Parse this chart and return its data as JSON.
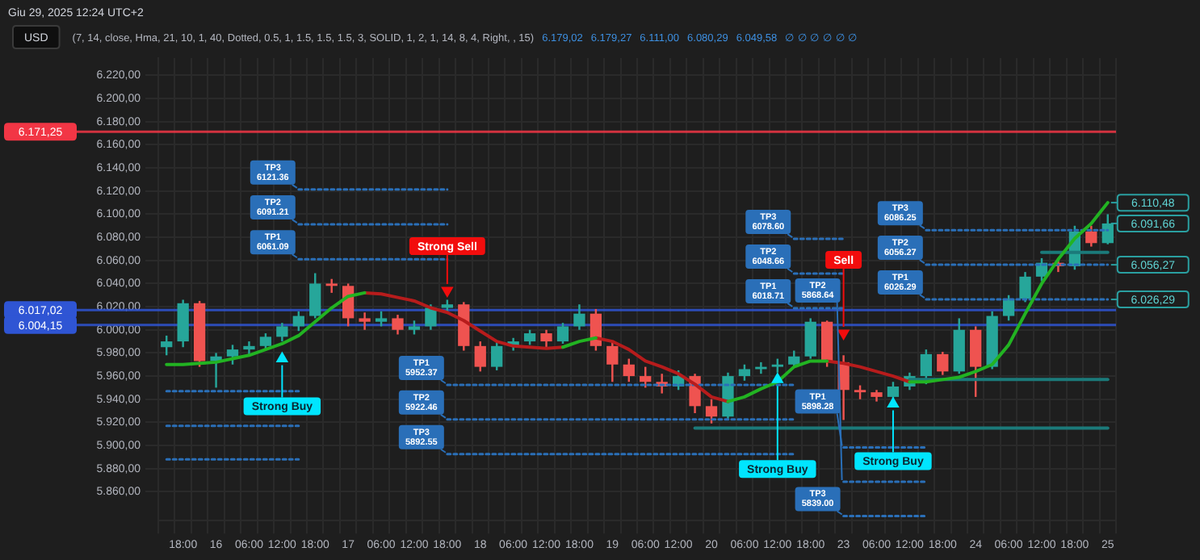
{
  "chart_data": {
    "type": "candlestick",
    "title": "Giu 29, 2025 12:24 UTC+2",
    "subtitle": "(7, 14, close, Hma, 21, 10, 1, 40, Dotted, 0.5, 1, 1.5, 1.5, 1.5, 3, SOLID, 1, 2, 1, 14, 8, 4, Right, , 15)",
    "annotations": [
      "USD",
      "6.179,02",
      "6.179,27",
      "6.111,00",
      "6.080,29",
      "6.049,58",
      "∅ ∅ ∅ ∅ ∅ ∅",
      {
        "text": "6.110,48",
        "x": "25",
        "y": 6110
      },
      {
        "text": "6.091,66",
        "x": "25",
        "y": 6092
      },
      {
        "text": "6.056,27",
        "x": "25",
        "y": 6056.27
      },
      {
        "text": "6.026,29",
        "x": "25",
        "y": 6026.29
      }
    ],
    "categories": [
      null,
      "18:00",
      null,
      "16",
      null,
      "06:00",
      null,
      "12:00",
      null,
      "18:00",
      null,
      "17",
      null,
      "06:00",
      null,
      "12:00",
      null,
      "18:00",
      null,
      "18",
      null,
      "06:00",
      null,
      "12:00",
      null,
      "18:00",
      null,
      "19",
      null,
      "06:00",
      null,
      "12:00",
      null,
      "20",
      null,
      "06:00",
      null,
      "12:00",
      null,
      "18:00",
      null,
      "23",
      null,
      "06:00",
      null,
      "12:00",
      null,
      "18:00",
      null,
      "24",
      null,
      "06:00",
      null,
      "12:00",
      null,
      "18:00",
      null,
      "25"
    ],
    "ohlc": [
      [
        5985,
        5995,
        5978,
        5990
      ],
      [
        5990,
        6026,
        5985,
        6023
      ],
      [
        6023,
        6025,
        5968,
        5973
      ],
      [
        5973,
        5980,
        5950,
        5977
      ],
      [
        5977,
        5987,
        5970,
        5983
      ],
      [
        5983,
        5990,
        5978,
        5986
      ],
      [
        5986,
        5997,
        5982,
        5994
      ],
      [
        5994,
        6006,
        5990,
        6003
      ],
      [
        6003,
        6016,
        5999,
        6012
      ],
      [
        6012,
        6049,
        6010,
        6040
      ],
      [
        6040,
        6044,
        6032,
        6038
      ],
      [
        6038,
        6040,
        6003,
        6010
      ],
      [
        6010,
        6015,
        6000,
        6007
      ],
      [
        6007,
        6016,
        6003,
        6010
      ],
      [
        6010,
        6013,
        5996,
        6000
      ],
      [
        6000,
        6008,
        5996,
        6003
      ],
      [
        6003,
        6022,
        6000,
        6019
      ],
      [
        6019,
        6026,
        6015,
        6022
      ],
      [
        6022,
        6024,
        5982,
        5986
      ],
      [
        5986,
        5990,
        5964,
        5968
      ],
      [
        5968,
        5990,
        5965,
        5986
      ],
      [
        5986,
        5993,
        5982,
        5990
      ],
      [
        5990,
        6000,
        5987,
        5997
      ],
      [
        5997,
        6000,
        5985,
        5990
      ],
      [
        5990,
        6006,
        5988,
        6003
      ],
      [
        6003,
        6022,
        6000,
        6014
      ],
      [
        6014,
        6018,
        5982,
        5986
      ],
      [
        5986,
        5990,
        5955,
        5970
      ],
      [
        5970,
        5975,
        5955,
        5960
      ],
      [
        5960,
        5968,
        5950,
        5955
      ],
      [
        5955,
        5962,
        5945,
        5951
      ],
      [
        5951,
        5965,
        5948,
        5960
      ],
      [
        5960,
        5962,
        5928,
        5934
      ],
      [
        5934,
        5940,
        5919,
        5925
      ],
      [
        5925,
        5963,
        5922,
        5960
      ],
      [
        5960,
        5970,
        5956,
        5966
      ],
      [
        5966,
        5972,
        5962,
        5968
      ],
      [
        5968,
        5975,
        5963,
        5970
      ],
      [
        5970,
        5982,
        5967,
        5977
      ],
      [
        5977,
        6010,
        5975,
        6007
      ],
      [
        6007,
        6008,
        5968,
        5972
      ],
      [
        5972,
        5978,
        5922,
        5948
      ],
      [
        5948,
        5952,
        5940,
        5946
      ],
      [
        5946,
        5948,
        5938,
        5942
      ],
      [
        5942,
        5955,
        5940,
        5951
      ],
      [
        5951,
        5963,
        5948,
        5960
      ],
      [
        5960,
        5983,
        5953,
        5979
      ],
      [
        5979,
        5981,
        5961,
        5964
      ],
      [
        5964,
        6010,
        5962,
        6000
      ],
      [
        6000,
        6003,
        5942,
        5968
      ],
      [
        5968,
        6016,
        5966,
        6012
      ],
      [
        6012,
        6030,
        6008,
        6027
      ],
      [
        6027,
        6050,
        6024,
        6046
      ],
      [
        6046,
        6062,
        6042,
        6058
      ],
      [
        6058,
        6062,
        6050,
        6055
      ],
      [
        6055,
        6090,
        6052,
        6085
      ],
      [
        6085,
        6090,
        6072,
        6075
      ],
      [
        6075,
        6100,
        6074,
        6092
      ]
    ],
    "colors": [
      "#26a69a",
      "#26a69a",
      "#ef5350",
      "#26a69a",
      "#26a69a",
      "#26a69a",
      "#26a69a",
      "#26a69a",
      "#26a69a",
      "#26a69a",
      "#ef5350",
      "#ef5350",
      "#ef5350",
      "#26a69a",
      "#ef5350",
      "#26a69a",
      "#26a69a",
      "#26a69a",
      "#ef5350",
      "#ef5350",
      "#26a69a",
      "#26a69a",
      "#26a69a",
      "#ef5350",
      "#26a69a",
      "#26a69a",
      "#ef5350",
      "#ef5350",
      "#ef5350",
      "#ef5350",
      "#ef5350",
      "#26a69a",
      "#ef5350",
      "#ef5350",
      "#26a69a",
      "#26a69a",
      "#26a69a",
      "#26a69a",
      "#26a69a",
      "#26a69a",
      "#ef5350",
      "#ef5350",
      "#ef5350",
      "#ef5350",
      "#26a69a",
      "#26a69a",
      "#26a69a",
      "#ef5350",
      "#26a69a",
      "#ef5350",
      "#26a69a",
      "#26a69a",
      "#26a69a",
      "#26a69a",
      "#ef5350",
      "#26a69a",
      "#ef5350",
      "#26a69a"
    ],
    "series": [
      {
        "type": "line",
        "color": "#22b322",
        "line_style": "solid",
        "values": [
          5970,
          5970,
          5971,
          5972,
          5975,
          5978,
          5983,
          5988,
          5995,
          6007,
          6019,
          6029,
          6032,
          null,
          null,
          null,
          null,
          null,
          null,
          null,
          null,
          null,
          null,
          null,
          5985,
          5990,
          5993,
          null,
          null,
          null,
          null,
          null,
          null,
          null,
          5938,
          5942,
          5949,
          5955,
          5968,
          5973,
          5973,
          null,
          null,
          null,
          null,
          5955,
          5955,
          5957,
          5959,
          5964,
          5970,
          5987,
          6014,
          6040,
          6061,
          6079,
          6092,
          6110
        ]
      },
      {
        "type": "line",
        "color": "#b71c1c",
        "line_style": "solid",
        "values": [
          null,
          null,
          null,
          null,
          null,
          null,
          null,
          null,
          null,
          null,
          null,
          null,
          6032,
          6031,
          6028,
          6025,
          6019,
          6015,
          6008,
          5999,
          5990,
          5986,
          5985,
          5984,
          5985,
          null,
          5993,
          5990,
          5983,
          5973,
          5968,
          5962,
          5953,
          5942,
          5938,
          null,
          null,
          null,
          null,
          null,
          5973,
          5971,
          5968,
          5964,
          5960,
          5955,
          null,
          null,
          null,
          null,
          null,
          null,
          null,
          null,
          null,
          null,
          null,
          null
        ]
      },
      {
        "type": "line",
        "color": "#1b7a7a",
        "line_style": "solid",
        "values": [
          null,
          null,
          null,
          null,
          null,
          null,
          null,
          null,
          null,
          null,
          null,
          null,
          null,
          null,
          null,
          null,
          null,
          null,
          null,
          null,
          null,
          null,
          null,
          null,
          null,
          null,
          null,
          null,
          null,
          null,
          null,
          null,
          null,
          null,
          null,
          null,
          null,
          null,
          null,
          null,
          null,
          null,
          null,
          null,
          null,
          5957,
          5957,
          5957,
          5957,
          5957,
          5957,
          5957,
          5957,
          5957,
          5957,
          5957,
          5957,
          5957
        ]
      },
      {
        "type": "line",
        "color": "#1b7a7a",
        "line_style": "solid",
        "values": [
          null,
          null,
          null,
          null,
          null,
          null,
          null,
          null,
          null,
          null,
          null,
          null,
          null,
          null,
          null,
          null,
          null,
          null,
          null,
          null,
          null,
          null,
          null,
          null,
          null,
          null,
          null,
          null,
          null,
          null,
          null,
          null,
          5915,
          5915,
          5915,
          5915,
          5915,
          5915,
          5915,
          5915,
          5915,
          5915,
          5915,
          5915,
          5915,
          5915,
          5915,
          5915,
          5915,
          5915,
          5915,
          5915,
          5915,
          5915,
          5915,
          5915,
          5915,
          5915
        ]
      },
      {
        "type": "line",
        "color": "#1b7a7a",
        "line_style": "solid",
        "values": [
          null,
          null,
          null,
          null,
          null,
          null,
          null,
          null,
          null,
          null,
          null,
          null,
          null,
          null,
          null,
          null,
          null,
          null,
          null,
          null,
          null,
          null,
          null,
          null,
          null,
          null,
          null,
          null,
          null,
          null,
          null,
          null,
          null,
          null,
          null,
          null,
          null,
          null,
          null,
          null,
          null,
          null,
          null,
          null,
          null,
          null,
          null,
          null,
          null,
          null,
          null,
          null,
          null,
          6067,
          6067,
          6067,
          6067,
          6067
        ]
      },
      {
        "type": "line",
        "color": "#2a6fb8",
        "line_style": "dotted",
        "values": [
          5947,
          5947,
          5947,
          5947,
          5947,
          5947,
          5947,
          5947,
          5947,
          null,
          null,
          null,
          null,
          null,
          null,
          null,
          null,
          null,
          null,
          null,
          null,
          null,
          null,
          null,
          null,
          null,
          null,
          null,
          null,
          null,
          null,
          null,
          null,
          null,
          null,
          null,
          null,
          null,
          null,
          null,
          null,
          null,
          null,
          null,
          null,
          null,
          null,
          null,
          null,
          null,
          null,
          null,
          null,
          null,
          null,
          null,
          null,
          null
        ]
      },
      {
        "type": "line",
        "color": "#2a6fb8",
        "line_style": "dotted",
        "values": [
          5917,
          5917,
          5917,
          5917,
          5917,
          5917,
          5917,
          5917,
          5917,
          null,
          null,
          null,
          null,
          null,
          null,
          null,
          null,
          null,
          null,
          null,
          null,
          null,
          null,
          null,
          null,
          null,
          null,
          null,
          null,
          null,
          null,
          null,
          null,
          null,
          null,
          null,
          null,
          null,
          null,
          null,
          null,
          null,
          null,
          null,
          null,
          null,
          null,
          null,
          null,
          null,
          null,
          null,
          null,
          null,
          null,
          null,
          null,
          null
        ]
      },
      {
        "type": "line",
        "color": "#2a6fb8",
        "line_style": "dotted",
        "values": [
          5888,
          5888,
          5888,
          5888,
          5888,
          5888,
          5888,
          5888,
          5888,
          null,
          null,
          null,
          null,
          null,
          null,
          null,
          null,
          null,
          null,
          null,
          null,
          null,
          null,
          null,
          null,
          null,
          null,
          null,
          null,
          null,
          null,
          null,
          null,
          null,
          null,
          null,
          null,
          null,
          null,
          null,
          null,
          null,
          null,
          null,
          null,
          null,
          null,
          null,
          null,
          null,
          null,
          null,
          null,
          null,
          null,
          null,
          null,
          null
        ]
      },
      {
        "type": "line",
        "name": "TP3 6121.36",
        "color": "#2a6fb8",
        "line_style": "dotted",
        "values": [
          null,
          null,
          null,
          null,
          null,
          null,
          null,
          null,
          6121.36,
          6121.36,
          6121.36,
          6121.36,
          6121.36,
          6121.36,
          6121.36,
          6121.36,
          6121.36,
          6121.36,
          null,
          null,
          null,
          null,
          null,
          null,
          null,
          null,
          null,
          null,
          null,
          null,
          null,
          null,
          null,
          null,
          null,
          null,
          null,
          null,
          null,
          null,
          null,
          null,
          null,
          null,
          null,
          null,
          null,
          null,
          null,
          null,
          null,
          null,
          null,
          null,
          null,
          null,
          null,
          null
        ]
      },
      {
        "type": "line",
        "name": "TP2 6091.21",
        "color": "#2a6fb8",
        "line_style": "dotted",
        "values": [
          null,
          null,
          null,
          null,
          null,
          null,
          null,
          null,
          6091.21,
          6091.21,
          6091.21,
          6091.21,
          6091.21,
          6091.21,
          6091.21,
          6091.21,
          6091.21,
          6091.21,
          null,
          null,
          null,
          null,
          null,
          null,
          null,
          null,
          null,
          null,
          null,
          null,
          null,
          null,
          null,
          null,
          null,
          null,
          null,
          null,
          null,
          null,
          null,
          null,
          null,
          null,
          null,
          null,
          null,
          null,
          null,
          null,
          null,
          null,
          null,
          null,
          null,
          null,
          null,
          null
        ]
      },
      {
        "type": "line",
        "name": "TP1 6061.09",
        "color": "#2a6fb8",
        "line_style": "dotted",
        "values": [
          null,
          null,
          null,
          null,
          null,
          null,
          null,
          null,
          6061.09,
          6061.09,
          6061.09,
          6061.09,
          6061.09,
          6061.09,
          6061.09,
          6061.09,
          6061.09,
          6061.09,
          null,
          null,
          null,
          null,
          null,
          null,
          null,
          null,
          null,
          null,
          null,
          null,
          null,
          null,
          null,
          null,
          null,
          null,
          null,
          null,
          null,
          null,
          null,
          null,
          null,
          null,
          null,
          null,
          null,
          null,
          null,
          null,
          null,
          null,
          null,
          null,
          null,
          null,
          null,
          null
        ]
      },
      {
        "type": "line",
        "name": "TP1 5952.37",
        "color": "#2a6fb8",
        "line_style": "dotted",
        "values": [
          null,
          null,
          null,
          null,
          null,
          null,
          null,
          null,
          null,
          null,
          null,
          null,
          null,
          null,
          null,
          null,
          null,
          5952.37,
          5952.37,
          5952.37,
          5952.37,
          5952.37,
          5952.37,
          5952.37,
          5952.37,
          5952.37,
          5952.37,
          5952.37,
          5952.37,
          5952.37,
          5952.37,
          5952.37,
          5952.37,
          5952.37,
          5952.37,
          5952.37,
          5952.37,
          5952.37,
          5952.37,
          null,
          null,
          null,
          null,
          null,
          null,
          null,
          null,
          null,
          null,
          null,
          null,
          null,
          null,
          null,
          null,
          null,
          null,
          null
        ]
      },
      {
        "type": "line",
        "name": "TP2 5922.46",
        "color": "#2a6fb8",
        "line_style": "dotted",
        "values": [
          null,
          null,
          null,
          null,
          null,
          null,
          null,
          null,
          null,
          null,
          null,
          null,
          null,
          null,
          null,
          null,
          null,
          5922.46,
          5922.46,
          5922.46,
          5922.46,
          5922.46,
          5922.46,
          5922.46,
          5922.46,
          5922.46,
          5922.46,
          5922.46,
          5922.46,
          5922.46,
          5922.46,
          5922.46,
          5922.46,
          5922.46,
          5922.46,
          5922.46,
          5922.46,
          5922.46,
          5922.46,
          null,
          null,
          null,
          null,
          null,
          null,
          null,
          null,
          null,
          null,
          null,
          null,
          null,
          null,
          null,
          null,
          null,
          null,
          null
        ]
      },
      {
        "type": "line",
        "name": "TP3 5892.55",
        "color": "#2a6fb8",
        "line_style": "dotted",
        "values": [
          null,
          null,
          null,
          null,
          null,
          null,
          null,
          null,
          null,
          null,
          null,
          null,
          null,
          null,
          null,
          null,
          null,
          5892.55,
          5892.55,
          5892.55,
          5892.55,
          5892.55,
          5892.55,
          5892.55,
          5892.55,
          5892.55,
          5892.55,
          5892.55,
          5892.55,
          5892.55,
          5892.55,
          5892.55,
          5892.55,
          5892.55,
          5892.55,
          5892.55,
          5892.55,
          5892.55,
          5892.55,
          null,
          null,
          null,
          null,
          null,
          null,
          null,
          null,
          null,
          null,
          null,
          null,
          null,
          null,
          null,
          null,
          null,
          null,
          null
        ]
      },
      {
        "type": "line",
        "name": "TP3 6078.60",
        "color": "#2a6fb8",
        "line_style": "dotted",
        "values": [
          null,
          null,
          null,
          null,
          null,
          null,
          null,
          null,
          null,
          null,
          null,
          null,
          null,
          null,
          null,
          null,
          null,
          null,
          null,
          null,
          null,
          null,
          null,
          null,
          null,
          null,
          null,
          null,
          null,
          null,
          null,
          null,
          null,
          null,
          null,
          null,
          null,
          null,
          6078.6,
          6078.6,
          6078.6,
          6078.6,
          null,
          null,
          null,
          null,
          null,
          null,
          null,
          null,
          null,
          null,
          null,
          null,
          null,
          null,
          null,
          null
        ]
      },
      {
        "type": "line",
        "name": "TP2 6048.66",
        "color": "#2a6fb8",
        "line_style": "dotted",
        "values": [
          null,
          null,
          null,
          null,
          null,
          null,
          null,
          null,
          null,
          null,
          null,
          null,
          null,
          null,
          null,
          null,
          null,
          null,
          null,
          null,
          null,
          null,
          null,
          null,
          null,
          null,
          null,
          null,
          null,
          null,
          null,
          null,
          null,
          null,
          null,
          null,
          null,
          null,
          6048.66,
          6048.66,
          6048.66,
          6048.66,
          null,
          null,
          null,
          null,
          null,
          null,
          null,
          null,
          null,
          null,
          null,
          null,
          null,
          null,
          null,
          null
        ]
      },
      {
        "type": "line",
        "name": "TP1 6018.71",
        "color": "#2a6fb8",
        "line_style": "dotted",
        "values": [
          null,
          null,
          null,
          null,
          null,
          null,
          null,
          null,
          null,
          null,
          null,
          null,
          null,
          null,
          null,
          null,
          null,
          null,
          null,
          null,
          null,
          null,
          null,
          null,
          null,
          null,
          null,
          null,
          null,
          null,
          null,
          null,
          null,
          null,
          null,
          null,
          null,
          null,
          6018.71,
          6018.71,
          6018.71,
          6018.71,
          null,
          null,
          null,
          null,
          null,
          null,
          null,
          null,
          null,
          null,
          null,
          null,
          null,
          null,
          null,
          null
        ]
      },
      {
        "type": "line",
        "name": "TP1 5898.28",
        "color": "#2a6fb8",
        "line_style": "dotted",
        "values": [
          null,
          null,
          null,
          null,
          null,
          null,
          null,
          null,
          null,
          null,
          null,
          null,
          null,
          null,
          null,
          null,
          null,
          null,
          null,
          null,
          null,
          null,
          null,
          null,
          null,
          null,
          null,
          null,
          null,
          null,
          null,
          null,
          null,
          null,
          null,
          null,
          null,
          null,
          null,
          null,
          null,
          5898.28,
          5898.28,
          5898.28,
          5898.28,
          5898.28,
          5898.28,
          null,
          null,
          null,
          null,
          null,
          null,
          null,
          null,
          null,
          null,
          null
        ]
      },
      {
        "type": "line",
        "name": "TP2 5868.64",
        "color": "#2a6fb8",
        "line_style": "dotted",
        "values": [
          null,
          null,
          null,
          null,
          null,
          null,
          null,
          null,
          null,
          null,
          null,
          null,
          null,
          null,
          null,
          null,
          null,
          null,
          null,
          null,
          null,
          null,
          null,
          null,
          null,
          null,
          null,
          null,
          null,
          null,
          null,
          null,
          null,
          null,
          null,
          null,
          null,
          null,
          null,
          null,
          null,
          5868.64,
          5868.64,
          5868.64,
          5868.64,
          5868.64,
          5868.64,
          null,
          null,
          null,
          null,
          null,
          null,
          null,
          null,
          null,
          null,
          null
        ]
      },
      {
        "type": "line",
        "name": "TP3 5839.00",
        "color": "#2a6fb8",
        "line_style": "dotted",
        "values": [
          null,
          null,
          null,
          null,
          null,
          null,
          null,
          null,
          null,
          null,
          null,
          null,
          null,
          null,
          null,
          null,
          null,
          null,
          null,
          null,
          null,
          null,
          null,
          null,
          null,
          null,
          null,
          null,
          null,
          null,
          null,
          null,
          null,
          null,
          null,
          null,
          null,
          null,
          null,
          null,
          null,
          5839.0,
          5839.0,
          5839.0,
          5839.0,
          5839.0,
          5839.0,
          null,
          null,
          null,
          null,
          null,
          null,
          null,
          null,
          null,
          null,
          null
        ]
      },
      {
        "type": "line",
        "name": "TP3 6086.25",
        "color": "#2a6fb8",
        "line_style": "dotted",
        "values": [
          null,
          null,
          null,
          null,
          null,
          null,
          null,
          null,
          null,
          null,
          null,
          null,
          null,
          null,
          null,
          null,
          null,
          null,
          null,
          null,
          null,
          null,
          null,
          null,
          null,
          null,
          null,
          null,
          null,
          null,
          null,
          null,
          null,
          null,
          null,
          null,
          null,
          null,
          null,
          null,
          null,
          null,
          null,
          null,
          null,
          null,
          6086.25,
          6086.25,
          6086.25,
          6086.25,
          6086.25,
          6086.25,
          6086.25,
          6086.25,
          6086.25,
          6086.25,
          6086.25,
          6086.25
        ]
      },
      {
        "type": "line",
        "name": "TP2 6056.27",
        "color": "#2a6fb8",
        "line_style": "dotted",
        "values": [
          null,
          null,
          null,
          null,
          null,
          null,
          null,
          null,
          null,
          null,
          null,
          null,
          null,
          null,
          null,
          null,
          null,
          null,
          null,
          null,
          null,
          null,
          null,
          null,
          null,
          null,
          null,
          null,
          null,
          null,
          null,
          null,
          null,
          null,
          null,
          null,
          null,
          null,
          null,
          null,
          null,
          null,
          null,
          null,
          null,
          null,
          6056.27,
          6056.27,
          6056.27,
          6056.27,
          6056.27,
          6056.27,
          6056.27,
          6056.27,
          6056.27,
          6056.27,
          6056.27,
          6056.27
        ]
      },
      {
        "type": "line",
        "name": "TP1 6026.29",
        "color": "#2a6fb8",
        "line_style": "dotted",
        "values": [
          null,
          null,
          null,
          null,
          null,
          null,
          null,
          null,
          null,
          null,
          null,
          null,
          null,
          null,
          null,
          null,
          null,
          null,
          null,
          null,
          null,
          null,
          null,
          null,
          null,
          null,
          null,
          null,
          null,
          null,
          null,
          null,
          null,
          null,
          null,
          null,
          null,
          null,
          null,
          null,
          null,
          null,
          null,
          null,
          null,
          null,
          6026.29,
          6026.29,
          6026.29,
          6026.29,
          6026.29,
          6026.29,
          6026.29,
          6026.29,
          6026.29,
          6026.29,
          6026.29,
          6026.29
        ]
      },
      {
        "type": "scatter",
        "name": "Strong Buy",
        "color": "#00e5ff",
        "marker": "triangle",
        "values": [
          null,
          null,
          null,
          null,
          null,
          null,
          null,
          5975,
          null,
          null,
          null,
          null,
          null,
          null,
          null,
          null,
          null,
          null,
          null,
          null,
          null,
          null,
          null,
          null,
          null,
          null,
          null,
          null,
          null,
          null,
          null,
          null,
          null,
          null,
          null,
          null,
          null,
          5957,
          null,
          null,
          null,
          null,
          null,
          null,
          5936,
          null,
          null,
          null,
          null,
          null,
          null,
          null,
          null,
          null,
          null,
          null,
          null,
          null
        ]
      },
      {
        "type": "scatter",
        "name": "Strong Sell",
        "color": "#f20d0d",
        "marker": "triangle",
        "values": [
          null,
          null,
          null,
          null,
          null,
          null,
          null,
          null,
          null,
          null,
          null,
          null,
          null,
          null,
          null,
          null,
          null,
          6034,
          null,
          null,
          null,
          null,
          null,
          null,
          null,
          null,
          null,
          null,
          null,
          null,
          null,
          null,
          null,
          null,
          null,
          null,
          null,
          null,
          null,
          null,
          null,
          null,
          null,
          null,
          null,
          null,
          null,
          null,
          null,
          null,
          null,
          null,
          null,
          null,
          null,
          null,
          null,
          null
        ]
      },
      {
        "type": "scatter",
        "name": "Sell",
        "color": "#f20d0d",
        "marker": "triangle",
        "values": [
          null,
          null,
          null,
          null,
          null,
          null,
          null,
          null,
          null,
          null,
          null,
          null,
          null,
          null,
          null,
          null,
          null,
          null,
          null,
          null,
          null,
          null,
          null,
          null,
          null,
          null,
          null,
          null,
          null,
          null,
          null,
          null,
          null,
          null,
          null,
          null,
          null,
          null,
          null,
          null,
          null,
          5997,
          null,
          null,
          null,
          null,
          null,
          null,
          null,
          null,
          null,
          null,
          null,
          null,
          null,
          null,
          null,
          null
        ]
      }
    ],
    "ref_lines": [
      {
        "axis": "y",
        "value": 6171.25,
        "label": "6.171,25",
        "color": "#f23645",
        "line_style": "solid"
      },
      {
        "axis": "y",
        "value": 6017.02,
        "label": "6.017,02",
        "color": "#2f55d4",
        "line_style": "solid"
      },
      {
        "axis": "y",
        "value": 6004.15,
        "label": "6.004,15",
        "color": "#2f55d4",
        "line_style": "solid"
      }
    ],
    "ylim": [
      5835,
      6235
    ],
    "yticks": [
      {
        "value": 5860,
        "label": "5.860,00"
      },
      {
        "value": 5880,
        "label": "5.880,00"
      },
      {
        "value": 5900,
        "label": "5.900,00"
      },
      {
        "value": 5920,
        "label": "5.920,00"
      },
      {
        "value": 5940,
        "label": "5.940,00"
      },
      {
        "value": 5960,
        "label": "5.960,00"
      },
      {
        "value": 5980,
        "label": "5.980,00"
      },
      {
        "value": 6000,
        "label": "6.000,00"
      },
      {
        "value": 6020,
        "label": "6.020,00"
      },
      {
        "value": 6040,
        "label": "6.040,00"
      },
      {
        "value": 6060,
        "label": "6.060,00"
      },
      {
        "value": 6080,
        "label": "6.080,00"
      },
      {
        "value": 6100,
        "label": "6.100,00"
      },
      {
        "value": 6120,
        "label": "6.120,00"
      },
      {
        "value": 6140,
        "label": "6.140,00"
      },
      {
        "value": 6160,
        "label": "6.160,00"
      },
      {
        "value": 6180,
        "label": "6.180,00"
      },
      {
        "value": 6200,
        "label": "6.200,00"
      },
      {
        "value": 6220,
        "label": "6.220,00"
      }
    ],
    "grid": true,
    "marker": "none",
    "legend": false
  }
}
